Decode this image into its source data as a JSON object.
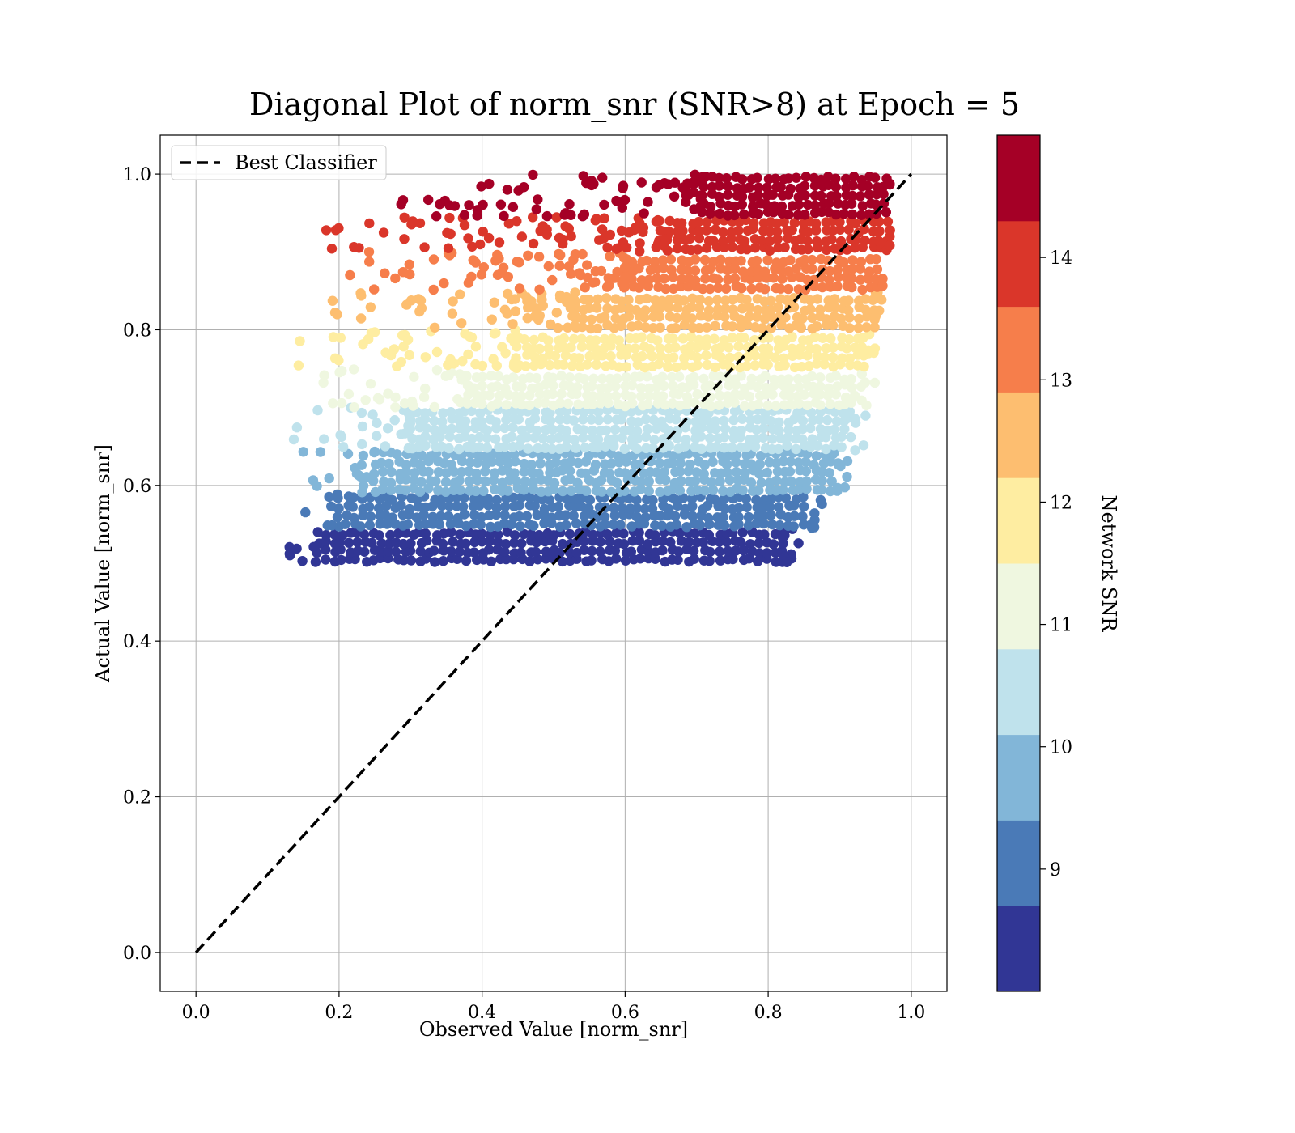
{
  "chart_data": {
    "type": "scatter",
    "title": "Diagonal Plot of norm_snr (SNR>8) at Epoch = 5",
    "xlabel": "Observed Value [norm_snr]",
    "ylabel": "Actual Value [norm_snr]",
    "xlim": [
      -0.05,
      1.05
    ],
    "ylim": [
      -0.05,
      1.05
    ],
    "xticks": [
      "0.0",
      "0.2",
      "0.4",
      "0.6",
      "0.8",
      "1.0"
    ],
    "yticks": [
      "0.0",
      "0.2",
      "0.4",
      "0.6",
      "0.8",
      "1.0"
    ],
    "grid": true,
    "legend": {
      "position": "top-left",
      "entries": [
        {
          "label": "Best Classifier",
          "style": "black dashed line"
        }
      ]
    },
    "reference_line": {
      "name": "Best Classifier",
      "x": [
        0,
        1
      ],
      "y": [
        0,
        1
      ],
      "color": "#000000",
      "dash": true
    },
    "colorbar": {
      "label": "Network SNR",
      "ticks": [
        "9",
        "10",
        "11",
        "12",
        "13",
        "14"
      ],
      "range": [
        8,
        15
      ],
      "band_colors": [
        "#313695",
        "#4a7ab7",
        "#82b6d8",
        "#bfe2ec",
        "#eff7e0",
        "#feeda1",
        "#fdbe70",
        "#f67e4b",
        "#da362a",
        "#a50026"
      ]
    },
    "bands": [
      {
        "snr_bin": "8.0-8.7",
        "color": "#313695",
        "y_range": [
          0.5,
          0.545
        ],
        "x_core": [
          0.17,
          0.82
        ],
        "x_sparse": [
          0.13,
          0.85
        ]
      },
      {
        "snr_bin": "8.7-9.4",
        "color": "#4a7ab7",
        "y_range": [
          0.545,
          0.59
        ],
        "x_core": [
          0.2,
          0.86
        ],
        "x_sparse": [
          0.15,
          0.88
        ]
      },
      {
        "snr_bin": "9.4-10.1",
        "color": "#82b6d8",
        "y_range": [
          0.59,
          0.645
        ],
        "x_core": [
          0.25,
          0.89
        ],
        "x_sparse": [
          0.15,
          0.92
        ]
      },
      {
        "snr_bin": "10.1-10.8",
        "color": "#bfe2ec",
        "y_range": [
          0.645,
          0.7
        ],
        "x_core": [
          0.3,
          0.91
        ],
        "x_sparse": [
          0.13,
          0.94
        ]
      },
      {
        "snr_bin": "10.8-11.5",
        "color": "#eff7e0",
        "y_range": [
          0.7,
          0.75
        ],
        "x_core": [
          0.38,
          0.93
        ],
        "x_sparse": [
          0.17,
          0.95
        ]
      },
      {
        "snr_bin": "11.5-12.2",
        "color": "#feeda1",
        "y_range": [
          0.75,
          0.8
        ],
        "x_core": [
          0.45,
          0.94
        ],
        "x_sparse": [
          0.14,
          0.95
        ]
      },
      {
        "snr_bin": "12.2-12.9",
        "color": "#fdbe70",
        "y_range": [
          0.8,
          0.85
        ],
        "x_core": [
          0.53,
          0.95
        ],
        "x_sparse": [
          0.17,
          0.96
        ]
      },
      {
        "snr_bin": "12.9-13.6",
        "color": "#f67e4b",
        "y_range": [
          0.85,
          0.9
        ],
        "x_core": [
          0.6,
          0.96
        ],
        "x_sparse": [
          0.19,
          0.96
        ]
      },
      {
        "snr_bin": "13.6-14.3",
        "color": "#da362a",
        "y_range": [
          0.9,
          0.945
        ],
        "x_core": [
          0.66,
          0.97
        ],
        "x_sparse": [
          0.18,
          0.97
        ]
      },
      {
        "snr_bin": "14.3-15.0",
        "color": "#a50026",
        "y_range": [
          0.945,
          1.0
        ],
        "x_core": [
          0.71,
          0.97
        ],
        "x_sparse": [
          0.27,
          0.97
        ]
      }
    ]
  }
}
